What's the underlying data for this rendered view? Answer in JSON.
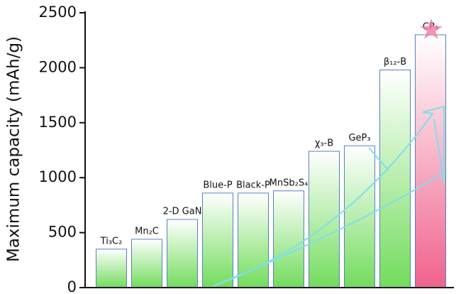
{
  "chart_data": {
    "type": "bar",
    "ylabel": "Maximum capacity (mAh/g)",
    "categories": [
      "Ti₃C₂",
      "Mn₂C",
      "2-D GaN",
      "Blue-P",
      "Black-P",
      "MnSb₂S₄",
      "χ₃-B",
      "GeP₃",
      "β₁₂-B",
      "CP₃"
    ],
    "values": [
      350,
      440,
      620,
      860,
      860,
      880,
      1240,
      1290,
      1980,
      2300
    ],
    "colors": [
      "#72dc5c",
      "#72dc5c",
      "#72dc5c",
      "#72dc5c",
      "#72dc5c",
      "#72dc5c",
      "#72dc5c",
      "#72dc5c",
      "#72dc5c",
      "#f0628e"
    ],
    "ylim": [
      0,
      2500
    ],
    "yticks": [
      0,
      500,
      1000,
      1500,
      2000,
      2500
    ],
    "grid": false
  }
}
